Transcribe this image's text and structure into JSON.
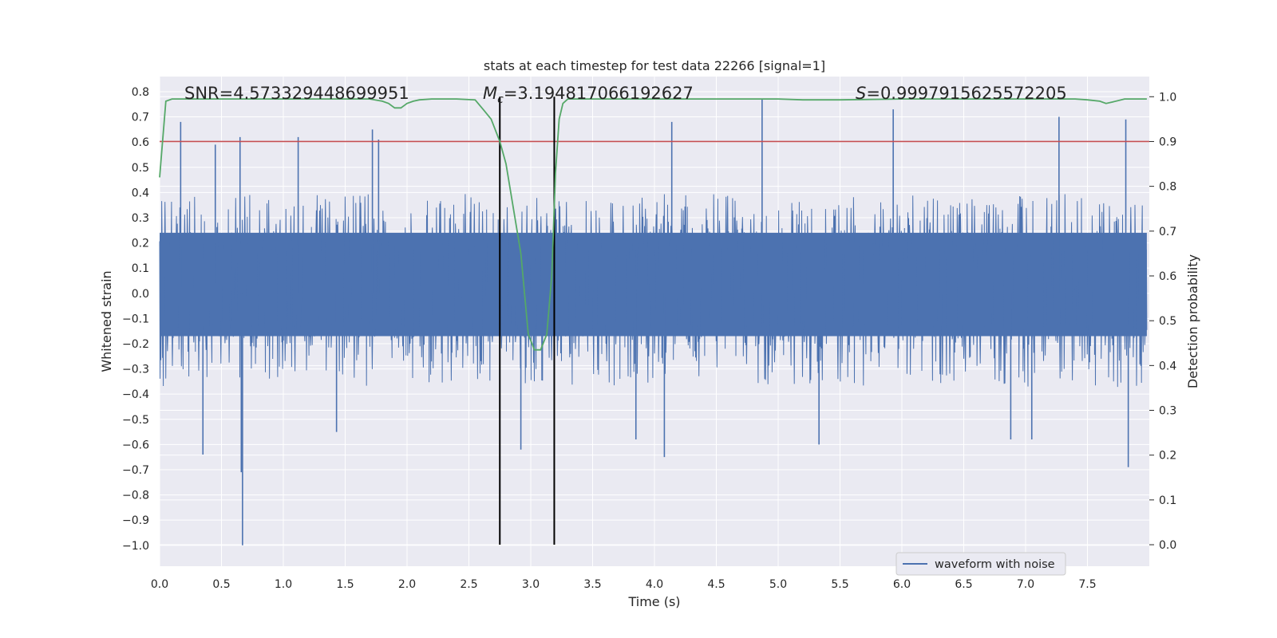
{
  "chart_data": {
    "type": "line",
    "title": "stats at each timestep for test data 22266 [signal=1]",
    "xlabel": "Time (s)",
    "ylabel_left": "Whitened strain",
    "ylabel_right": "Detection probability",
    "xlim": [
      0.0,
      8.0
    ],
    "ylim_left": [
      -1.083,
      0.86
    ],
    "ylim_right": [
      -0.048,
      1.045
    ],
    "x_ticks": [
      "0.0",
      "0.5",
      "1.0",
      "1.5",
      "2.0",
      "2.5",
      "3.0",
      "3.5",
      "4.0",
      "4.5",
      "5.0",
      "5.5",
      "6.0",
      "6.5",
      "7.0",
      "7.5"
    ],
    "y_left_ticks": [
      "0.8",
      "0.7",
      "0.6",
      "0.5",
      "0.4",
      "0.3",
      "0.2",
      "0.1",
      "0.0",
      "-0.1",
      "-0.2",
      "-0.3",
      "-0.4",
      "-0.5",
      "-0.6",
      "-0.7",
      "-0.8",
      "-0.9",
      "-1.0"
    ],
    "y_right_ticks": [
      "1.0",
      "0.9",
      "0.8",
      "0.7",
      "0.6",
      "0.5",
      "0.4",
      "0.3",
      "0.2",
      "0.1",
      "0.0"
    ],
    "annotations": {
      "snr": "SNR=4.573329448699951",
      "mc_symbol": "M",
      "mc_sub": "c",
      "mc_value": "=3.194817066192627",
      "s_symbol": "S",
      "s_value": "=0.9997915625572205"
    },
    "legend": {
      "placement": "lower right",
      "label": "waveform with noise"
    },
    "threshold_right": 0.9,
    "vlines": [
      2.75,
      3.19
    ],
    "detection_probability": {
      "x": [
        0.0,
        0.05,
        0.1,
        0.2,
        0.3,
        0.5,
        0.8,
        1.0,
        1.2,
        1.5,
        1.7,
        1.8,
        1.85,
        1.9,
        1.95,
        2.0,
        2.05,
        2.1,
        2.2,
        2.4,
        2.55,
        2.62,
        2.68,
        2.75,
        2.8,
        2.86,
        2.92,
        2.98,
        3.03,
        3.08,
        3.13,
        3.17,
        3.2,
        3.23,
        3.26,
        3.3,
        3.35,
        3.5,
        4.0,
        4.5,
        5.0,
        5.2,
        5.5,
        6.0,
        6.5,
        7.0,
        7.4,
        7.5,
        7.6,
        7.65,
        7.7,
        7.8,
        7.98
      ],
      "y": [
        0.82,
        0.99,
        0.995,
        0.995,
        0.995,
        0.995,
        0.995,
        0.995,
        0.995,
        0.995,
        0.995,
        0.99,
        0.985,
        0.975,
        0.975,
        0.985,
        0.99,
        0.993,
        0.995,
        0.995,
        0.993,
        0.97,
        0.95,
        0.9,
        0.85,
        0.75,
        0.65,
        0.47,
        0.435,
        0.435,
        0.47,
        0.6,
        0.83,
        0.95,
        0.985,
        0.995,
        0.995,
        0.995,
        0.995,
        0.995,
        0.995,
        0.993,
        0.993,
        0.995,
        0.995,
        0.995,
        0.995,
        0.993,
        0.99,
        0.985,
        0.988,
        0.995,
        0.995
      ]
    },
    "noise_waveform": {
      "x_range": [
        0.0,
        7.98
      ],
      "core_band": [
        -0.17,
        0.24
      ],
      "max": 0.77,
      "min": -1.0,
      "spikes": [
        {
          "x": 0.17,
          "y": 0.68
        },
        {
          "x": 0.45,
          "y": 0.59
        },
        {
          "x": 0.65,
          "y": 0.62
        },
        {
          "x": 1.12,
          "y": 0.62
        },
        {
          "x": 1.72,
          "y": 0.65
        },
        {
          "x": 1.77,
          "y": 0.61
        },
        {
          "x": 4.14,
          "y": 0.68
        },
        {
          "x": 4.87,
          "y": 0.77
        },
        {
          "x": 5.93,
          "y": 0.73
        },
        {
          "x": 7.27,
          "y": 0.7
        },
        {
          "x": 7.81,
          "y": 0.69
        },
        {
          "x": 0.35,
          "y": -0.64
        },
        {
          "x": 0.67,
          "y": -1.0
        },
        {
          "x": 0.66,
          "y": -0.71
        },
        {
          "x": 2.92,
          "y": -0.62
        },
        {
          "x": 4.08,
          "y": -0.65
        },
        {
          "x": 5.33,
          "y": -0.6
        },
        {
          "x": 7.83,
          "y": -0.69
        },
        {
          "x": 6.88,
          "y": -0.58
        },
        {
          "x": 7.05,
          "y": -0.58
        },
        {
          "x": 1.43,
          "y": -0.55
        },
        {
          "x": 3.85,
          "y": -0.58
        }
      ]
    }
  }
}
